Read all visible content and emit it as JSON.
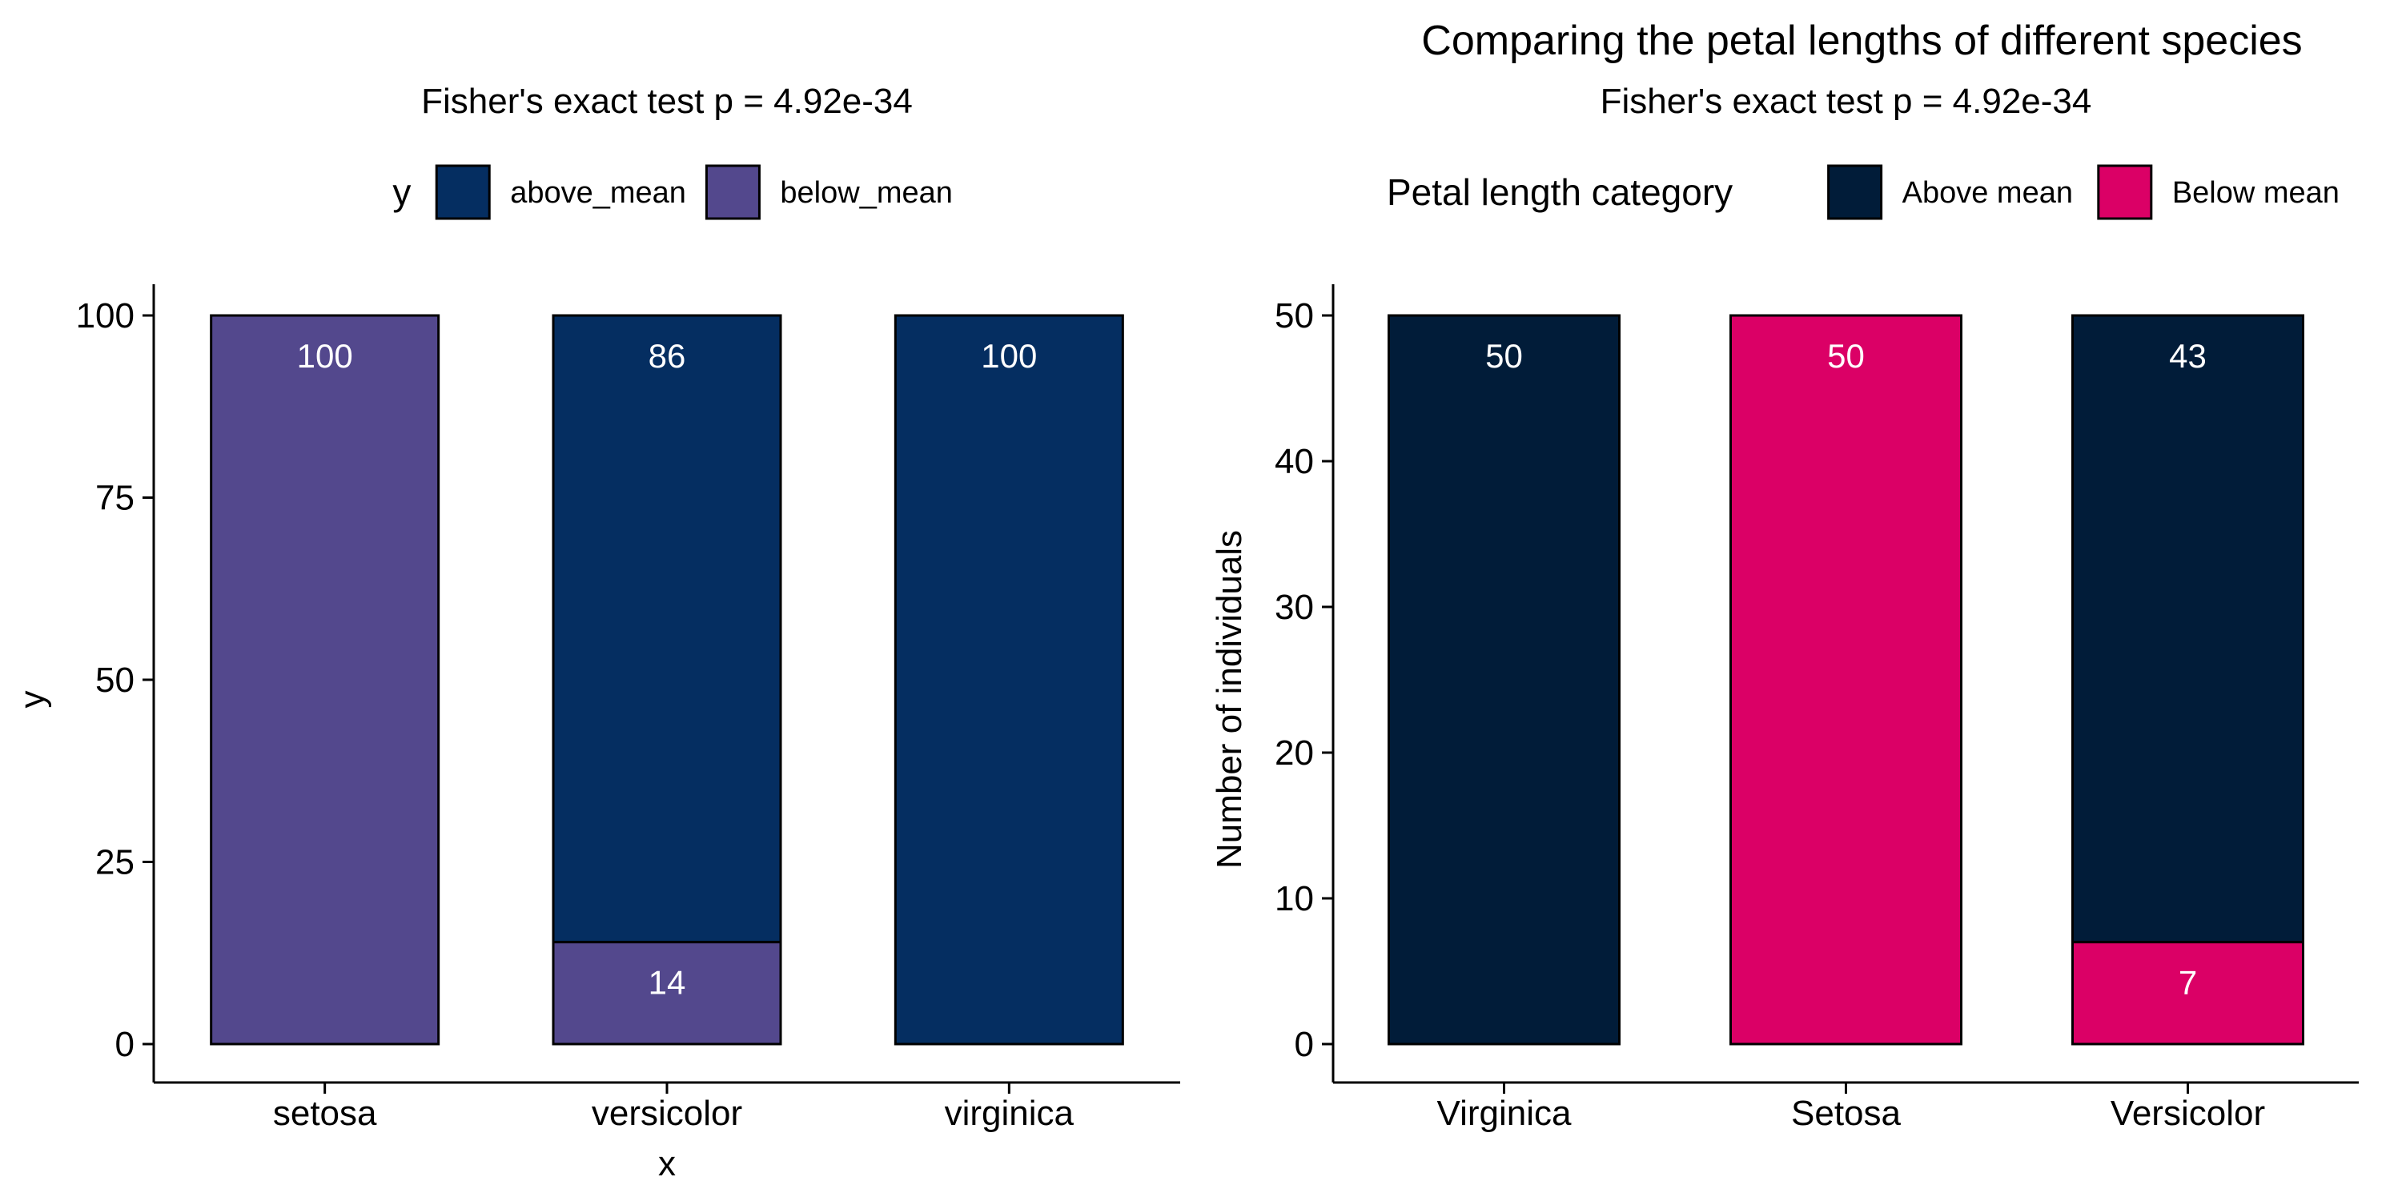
{
  "chart_data": [
    {
      "type": "bar",
      "stacked": true,
      "title": "",
      "subtitle": "Fisher's exact test p = 4.92e-34",
      "xlabel": "x",
      "ylabel": "y",
      "ylim": [
        0,
        100
      ],
      "yticks": [
        0,
        25,
        50,
        75,
        100
      ],
      "grid": false,
      "legend": {
        "title": "y",
        "position": "top"
      },
      "categories": [
        "setosa",
        "versicolor",
        "virginica"
      ],
      "series": [
        {
          "name": "below_mean",
          "color": "#53488D",
          "values": [
            100,
            14,
            0
          ]
        },
        {
          "name": "above_mean",
          "color": "#052E61",
          "values": [
            0,
            86,
            100
          ]
        }
      ],
      "legend_order": [
        "above_mean",
        "below_mean"
      ]
    },
    {
      "type": "bar",
      "stacked": true,
      "title": "Comparing the petal lengths of different species",
      "subtitle": "Fisher's exact test p = 4.92e-34",
      "xlabel": "",
      "ylabel": "Number of individuals",
      "ylim": [
        0,
        50
      ],
      "yticks": [
        0,
        10,
        20,
        30,
        40,
        50
      ],
      "grid": false,
      "legend": {
        "title": "Petal length category",
        "position": "top"
      },
      "categories": [
        "Virginica",
        "Setosa",
        "Versicolor"
      ],
      "series": [
        {
          "name": "Below mean",
          "color": "#DB0066",
          "values": [
            0,
            50,
            7
          ]
        },
        {
          "name": "Above mean",
          "color": "#011C39",
          "values": [
            50,
            0,
            43
          ]
        }
      ],
      "legend_order": [
        "Above mean",
        "Below mean"
      ]
    }
  ]
}
